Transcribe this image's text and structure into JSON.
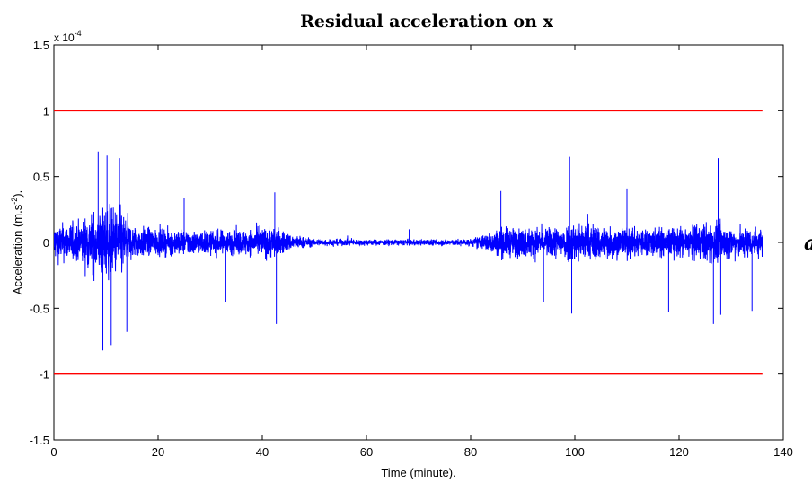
{
  "chart_data": {
    "type": "line",
    "title": "Residual acceleration on x",
    "xlabel": "Time (minute).",
    "ylabel_main": "Acceleration (m.s",
    "ylabel_sup": "-2",
    "ylabel_end": ").",
    "y_multiplier": "x 10",
    "y_multiplier_exp": "-4",
    "xlim": [
      0,
      140
    ],
    "ylim": [
      -1.5,
      1.5
    ],
    "x_ticks": [
      0,
      20,
      40,
      60,
      80,
      100,
      120,
      140
    ],
    "y_ticks": [
      -1.5,
      -1,
      -0.5,
      0,
      0.5,
      1,
      1.5
    ],
    "x_tick_labels": [
      "0",
      "20",
      "40",
      "60",
      "80",
      "100",
      "120",
      "140"
    ],
    "y_tick_labels": [
      "-1.5",
      "-1",
      "-0.5",
      "0",
      "0.5",
      "1",
      "1.5"
    ],
    "grid": false,
    "series": [
      {
        "color": "#0000ff",
        "x_range": [
          0,
          136
        ],
        "approx_amplitude_envelope": [
          [
            0,
            0.3
          ],
          [
            5,
            0.35
          ],
          [
            8,
            0.55
          ],
          [
            10,
            0.6
          ],
          [
            13,
            0.55
          ],
          [
            15,
            0.28
          ],
          [
            20,
            0.22
          ],
          [
            30,
            0.2
          ],
          [
            38,
            0.22
          ],
          [
            42,
            0.28
          ],
          [
            45,
            0.15
          ],
          [
            50,
            0.06
          ],
          [
            60,
            0.05
          ],
          [
            70,
            0.05
          ],
          [
            80,
            0.06
          ],
          [
            83,
            0.15
          ],
          [
            86,
            0.25
          ],
          [
            95,
            0.25
          ],
          [
            100,
            0.35
          ],
          [
            110,
            0.25
          ],
          [
            120,
            0.25
          ],
          [
            127,
            0.35
          ],
          [
            130,
            0.25
          ],
          [
            136,
            0.25
          ]
        ],
        "peaks": [
          [
            8.5,
            0.69
          ],
          [
            9.4,
            -0.82
          ],
          [
            10.2,
            0.66
          ],
          [
            11,
            -0.78
          ],
          [
            12.6,
            0.64
          ],
          [
            14,
            -0.68
          ],
          [
            25,
            0.34
          ],
          [
            33,
            -0.45
          ],
          [
            42.4,
            0.38
          ],
          [
            42.7,
            -0.62
          ],
          [
            68.2,
            0.1
          ],
          [
            85.8,
            0.39
          ],
          [
            94,
            -0.45
          ],
          [
            99,
            0.65
          ],
          [
            99.4,
            -0.54
          ],
          [
            110,
            0.41
          ],
          [
            118,
            -0.53
          ],
          [
            126.6,
            -0.62
          ],
          [
            127.5,
            0.64
          ],
          [
            128,
            -0.55
          ],
          [
            134,
            -0.52
          ]
        ]
      },
      {
        "color": "#ff0000",
        "x": [
          0,
          136
        ],
        "y": [
          1,
          1
        ]
      },
      {
        "color": "#ff0000",
        "x": [
          0,
          136
        ],
        "y": [
          -1,
          -1
        ]
      }
    ]
  },
  "cut_text": "a"
}
